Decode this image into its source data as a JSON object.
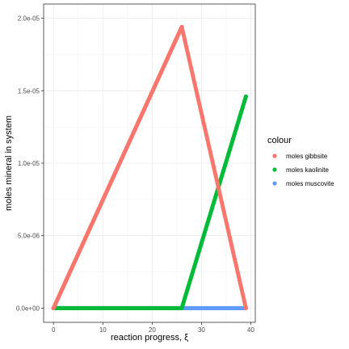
{
  "chart_data": {
    "type": "scatter",
    "xlabel": "reaction progress, ξ",
    "ylabel": "moles mineral in system",
    "xlim": [
      -2,
      40.9
    ],
    "ylim": [
      -9.8e-07,
      2.098e-05
    ],
    "x_ticks": [
      0,
      10,
      20,
      30,
      40
    ],
    "x_tick_labels": [
      "0",
      "10",
      "20",
      "30",
      "40"
    ],
    "y_ticks": [
      0,
      5e-06,
      1e-05,
      1.5e-05,
      2e-05
    ],
    "y_tick_labels": [
      "0.0e+00",
      "5.0e-06",
      "1.0e-05",
      "1.5e-05",
      "2.0e-05"
    ],
    "grid": true,
    "legend": {
      "title": "colour",
      "position": "right"
    },
    "series": [
      {
        "name": "moles gibbsite",
        "color": "#F8766D",
        "points": [
          [
            0,
            0
          ],
          [
            26,
            1.94e-05
          ],
          [
            39,
            0
          ]
        ]
      },
      {
        "name": "moles kaolinite",
        "color": "#00BA38",
        "points": [
          [
            0,
            0
          ],
          [
            26,
            0
          ],
          [
            39,
            1.46e-05
          ]
        ]
      },
      {
        "name": "moles muscovite",
        "color": "#619CFF",
        "points": [
          [
            0,
            0
          ],
          [
            26,
            0
          ],
          [
            39,
            0
          ]
        ]
      }
    ]
  }
}
